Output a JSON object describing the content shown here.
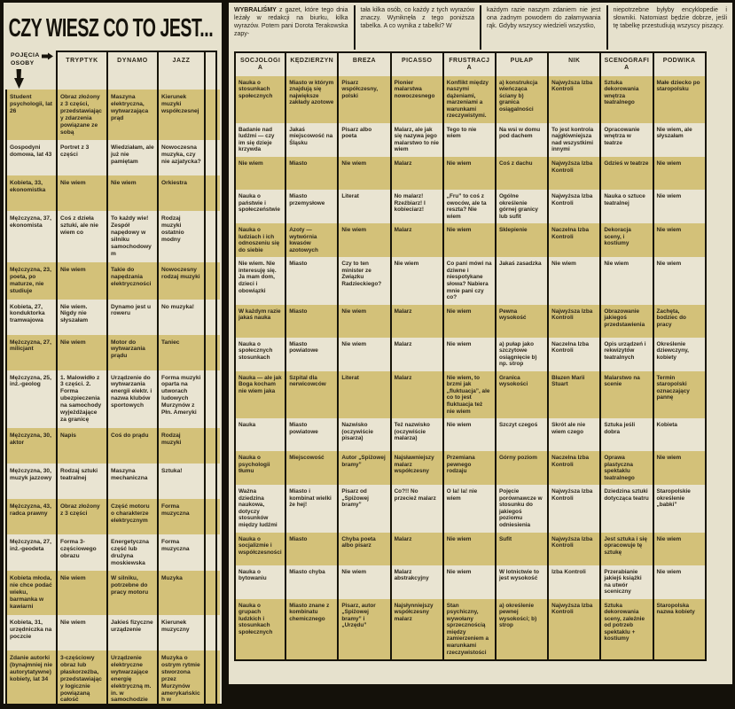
{
  "title": "CZY WIESZ CO TO JEST...",
  "corner": {
    "line1": "POJĘCIA",
    "line2": "OSOBY"
  },
  "intro": {
    "col1_bold": "WYBRALIŚMY",
    "col1_rest": " z gazet, które tego dnia leżały w redakcji na biurku, kilka wyrazów. Potem pani Dorota Terakowska zapy-",
    "col2": "tała kilka osób, co każdy z tych wyrazów znaczy. Wyniknęła z tego poniższa tabelka. A co wynika z tabelki? W",
    "col3": "każdym razie naszym zdaniem nie jest ona żadnym powodem do załamywania rąk. Gdyby wszyscy wiedzieli wszystko,",
    "col4": "niepotrzebne byłyby encyklopedie i słowniki. Natomiast będzie dobrze, jeśli tę tabelkę przestudiują wszyscy piszący."
  },
  "left_table": {
    "headers": [
      "TRYPTYK",
      "DYNAMO",
      "JAZZ",
      ""
    ],
    "rows": [
      {
        "person": "Student psychologii, lat 26",
        "cells": [
          "Obraz złożony z 3 części, przedstawiający zdarzenia powiązane ze sobą",
          "Maszyna elektryczna, wytwarzająca prąd",
          "Kierunek muzyki współczesnej",
          ""
        ]
      },
      {
        "person": "Gospodyni domowa, lat 43",
        "cells": [
          "Portret z 3 części",
          "Wiedziałam, ale już nie pamiętam",
          "Nowoczesna muzyka, czy nie azjatycka?",
          ""
        ]
      },
      {
        "person": "Kobieta, 33, ekonomistka",
        "cells": [
          "Nie wiem",
          "Nie wiem",
          "Orkiestra",
          ""
        ]
      },
      {
        "person": "Mężczyzna, 37, ekonomista",
        "cells": [
          "Coś z dzieła sztuki, ale nie wiem co",
          "To każdy wie! Zespół napędowy w silniku samochodowym",
          "Rodzaj muzyki ostatnio modny",
          ""
        ]
      },
      {
        "person": "Mężczyzna, 23, poeta, po maturze, nie studiuje",
        "cells": [
          "Nie wiem",
          "Takie do napędzania elektryczności",
          "Nowoczesny rodzaj muzyki",
          ""
        ]
      },
      {
        "person": "Kobieta, 27, konduktorka tramwajowa",
        "cells": [
          "Nie wiem. Nigdy nie słyszałam",
          "Dynamo jest u roweru",
          "No muzyka!",
          ""
        ]
      },
      {
        "person": "Mężczyzna, 27, milicjant",
        "cells": [
          "Nie wiem",
          "Motor do wytwarzania prądu",
          "Taniec",
          ""
        ]
      },
      {
        "person": "Mężczyzna, 25, inż.-geolog",
        "cells": [
          "1. Malowidło z 3 części. 2. Forma ubezpieczenia na samochody wyjeżdżające za granicę",
          "Urządzenie do wytwarzania energii elektr. i nazwa klubów sportowych",
          "Forma muzyki oparta na utworach ludowych Murzynów z Płn. Ameryki",
          ""
        ]
      },
      {
        "person": "Mężczyzna, 30, aktor",
        "cells": [
          "Napis",
          "Coś do prądu",
          "Rodzaj muzyki",
          ""
        ]
      },
      {
        "person": "Mężczyzna, 30, muzyk jazzowy",
        "cells": [
          "Rodzaj sztuki teatralnej",
          "Maszyna mechaniczna",
          "Sztuka!",
          ""
        ]
      },
      {
        "person": "Mężczyzna, 43, radca prawny",
        "cells": [
          "Obraz złożony z 3 części",
          "Część motoru o charakterze elektrycznym",
          "Forma muzyczna",
          ""
        ]
      },
      {
        "person": "Mężczyzna, 27, inż.-geodeta",
        "cells": [
          "Forma 3-częściowego obrazu",
          "Energetyczna część lub drużyna moskiewska",
          "Forma muzyczna",
          ""
        ]
      },
      {
        "person": "Kobieta młoda, nie chce podać wieku, barmanka w kawiarni",
        "cells": [
          "Nie wiem",
          "W silniku, potrzebne do pracy motoru",
          "Muzyka",
          ""
        ]
      },
      {
        "person": "Kobieta, 31, urzędniczka na poczcie",
        "cells": [
          "Nie wiem",
          "Jakieś fizyczne urządzenie",
          "Kierunek muzyczny",
          ""
        ]
      },
      {
        "person": "Zdanie autorki (bynajmniej nie autorytatywne) kobiety, lat 34",
        "cells": [
          "3-częściowy obraz lub płaskorzeźba, przedstawiający logicznie powiązaną całość",
          "Urządzenie elektryczne wytwarzające energię elektryczną m. in. w samochodzie",
          "Muzyka o ostrym rytmie stworzona przez Murzynów amerykańskich w początkach XX w.",
          ""
        ]
      }
    ]
  },
  "right_table": {
    "headers": [
      "SOCJOLOGIA",
      "KĘDZIERZYN",
      "BREZA",
      "PICASSO",
      "FRUSTRACJA",
      "PUŁAP",
      "NIK",
      "SCENOGRAFIA",
      "PODWIKA"
    ],
    "rows": [
      [
        "Nauka o stosunkach społecznych",
        "Miasto w którym znajdują się największe zakłady azotowe",
        "Pisarz współczesny, polski",
        "Pionier malarstwa nowoczesnego",
        "Konflikt między naszymi dążeniami, marzeniami a warunkami rzeczywistymi.",
        "a) konstrukcja wieńcząca ściany b) granica osiągalności",
        "Najwyższa Izba Kontroli",
        "Sztuka dekorowania wnętrza teatralnego",
        "Małe dziecko po staropolsku"
      ],
      [
        "Badanie nad ludźmi — czy im się dzieje krzywda",
        "Jakaś miejscowość na Śląsku",
        "Pisarz albo poeta",
        "Malarz, ale jak się nazywa jego malarstwo to nie wiem",
        "Tego to nie wiem",
        "Na wsi w domu pod dachem",
        "To jest kontrola najgłówniejsza nad wszystkimi innymi",
        "Opracowanie wnętrza w teatrze",
        "Nie wiem, ale słyszałam"
      ],
      [
        "Nie wiem",
        "Miasto",
        "Nie wiem",
        "Malarz",
        "Nie wiem",
        "Coś z dachu",
        "Najwyższa Izba Kontroli",
        "Gdzieś w teatrze",
        "Nie wiem"
      ],
      [
        "Nauka o państwie i społeczeństwie",
        "Miasto przemysłowe",
        "Literat",
        "No malarz! Rzeźbiarz! I kobieciarz!",
        "„Fru” to coś z owoców, ale ta reszta? Nie wiem",
        "Ogólne określenie górnej granicy lub sufit",
        "Najwyższa Izba Kontroli",
        "Nauka o sztuce teatralnej",
        "Nie wiem"
      ],
      [
        "Nauka o ludziach i ich odnoszeniu się do siebie",
        "Azoty — wytwórnia kwasów azotowych",
        "Nie wiem",
        "Malarz",
        "Nie wiem",
        "Sklepienie",
        "Naczelna Izba Kontroli",
        "Dekoracja sceny, i kostiumy",
        "Nie wiem"
      ],
      [
        "Nie wiem. Nie interesuję się. Ja mam dom, dzieci i obowiązki",
        "Miasto",
        "Czy to ten minister ze Związku Radzieckiego?",
        "Nie wiem",
        "Co pani mówi na dziwne i niespotykane słowa? Nabiera mnie pani czy co?",
        "Jakaś zasadzka",
        "Nie wiem",
        "Nie wiem",
        "Nie wiem"
      ],
      [
        "W każdym razie jakaś nauka",
        "Miasto",
        "Nie wiem",
        "Malarz",
        "Nie wiem",
        "Pewna wysokość",
        "Najwyższa Izba Kontroli",
        "Obrazowanie jakiegoś przedstawienia",
        "Zachęta, bodziec do pracy"
      ],
      [
        "Nauka o społecznych stosunkach",
        "Miasto powiatowe",
        "Nie wiem",
        "Malarz",
        "Nie wiem",
        "a) pułap jako szczytowe osiągnięcie b) np. strop",
        "Naczelna Izba Kontroli",
        "Opis urządzeń i rekwizytów teatralnych",
        "Określenie dziewczyny, kobiety"
      ],
      [
        "Nauka — ale jak Boga kocham nie wiem jaka",
        "Szpital dla nerwicowców",
        "Literat",
        "Malarz",
        "Nie wiem, to brzmi jak „fluktuacja”, ale co to jest fluktuacja też nie wiem",
        "Granica wysokości",
        "Błazen Marii Stuart",
        "Malarstwo na scenie",
        "Termin staropolski oznaczający pannę"
      ],
      [
        "Nauka",
        "Miasto powiatowe",
        "Nazwisko (oczywiście pisarza)",
        "Też nazwisko (oczywiście malarza)",
        "Nie wiem",
        "Szczyt czegoś",
        "Skrót ale nie wiem czego",
        "Sztuka jeśli dobra",
        "Kobieta"
      ],
      [
        "Nauka o psychologii tłumu",
        "Miejscowość",
        "Autor „Spiżowej bramy”",
        "Najsławniejszy malarz współczesny",
        "Przemiana pewnego rodzaju",
        "Górny poziom",
        "Naczelna Izba Kontroli",
        "Oprawa plastyczna spektaklu teatralnego",
        "Nie wiem"
      ],
      [
        "Ważna dziedzina naukowa, dotyczy stosunków między ludźmi",
        "Miasto i kombinat wielki że hej!",
        "Pisarz od „Spiżowej bramy”",
        "Co?!! No przecież malarz",
        "O la! la! nie wiem",
        "Pojęcie porównawcze w stosunku do jakiegoś poziomu odniesienia",
        "Najwyższa Izba Kontroli",
        "Dziedzina sztuki dotycząca teatru",
        "Staropolskie określenie „babki”"
      ],
      [
        "Nauka o socjalizmie i współczesności",
        "Miasto",
        "Chyba poeta albo pisarz",
        "Malarz",
        "Nie wiem",
        "Sufit",
        "Najwyższa Izba Kontroli",
        "Jest sztuka i się opracowuje tę sztukę",
        "Nie wiem"
      ],
      [
        "Nauka o bytowaniu",
        "Miasto chyba",
        "Nie wiem",
        "Malarz abstrakcyjny",
        "Nie wiem",
        "W lotnictwie to jest wysokość",
        "Izba Kontroli",
        "Przerabianie jakiejś książki na utwór sceniczny",
        "Nie wiem"
      ],
      [
        "Nauka o grupach ludzkich i stosunkach społecznych",
        "Miasto znane z kombinatu chemicznego",
        "Pisarz, autor „Spiżowej bramy” i „Urzędu”",
        "Najsłynniejszy współczesny malarz",
        "Stan psychiczny, wywołany sprzecznością między zamierzeniem a warunkami rzeczywistości",
        "a) określenie pewnej wysokości; b) strop",
        "Najwyższa Izba Kontroli",
        "Sztuka dekorowania sceny, zależnie od potrzeb spektaklu + kostiumy",
        "Staropolska nazwa kobiety"
      ]
    ]
  }
}
